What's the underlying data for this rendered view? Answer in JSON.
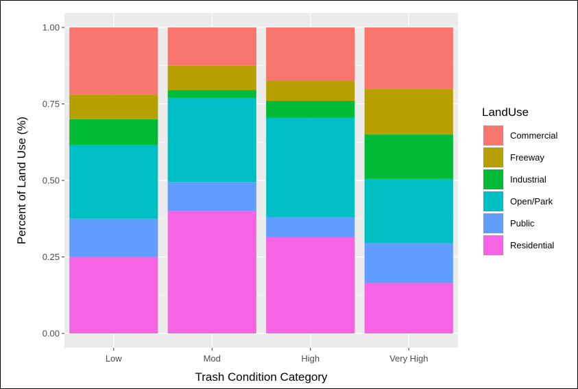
{
  "chart_data": {
    "type": "bar",
    "stacked": true,
    "categories": [
      "Low",
      "Mod",
      "High",
      "Very High"
    ],
    "xlabel": "Trash Condition Category",
    "ylabel": "Percent of Land Use (%)",
    "ylim": [
      0,
      1
    ],
    "yticks": [
      "0.00",
      "0.25",
      "0.50",
      "0.75",
      "1.00"
    ],
    "legend": {
      "title": "LandUse",
      "position": "right"
    },
    "grid": true,
    "series": [
      {
        "name": "Commercial",
        "color": "#F8766D",
        "values": [
          0.22,
          0.125,
          0.175,
          0.2
        ]
      },
      {
        "name": "Freeway",
        "color": "#B79F00",
        "values": [
          0.08,
          0.08,
          0.065,
          0.15
        ]
      },
      {
        "name": "Industrial",
        "color": "#00BA38",
        "values": [
          0.085,
          0.025,
          0.055,
          0.145
        ]
      },
      {
        "name": "Open/Park",
        "color": "#00BFC4",
        "values": [
          0.24,
          0.275,
          0.325,
          0.21
        ]
      },
      {
        "name": "Public",
        "color": "#619CFF",
        "values": [
          0.125,
          0.095,
          0.065,
          0.13
        ]
      },
      {
        "name": "Residential",
        "color": "#F564E3",
        "values": [
          0.25,
          0.4,
          0.315,
          0.165
        ]
      }
    ]
  }
}
